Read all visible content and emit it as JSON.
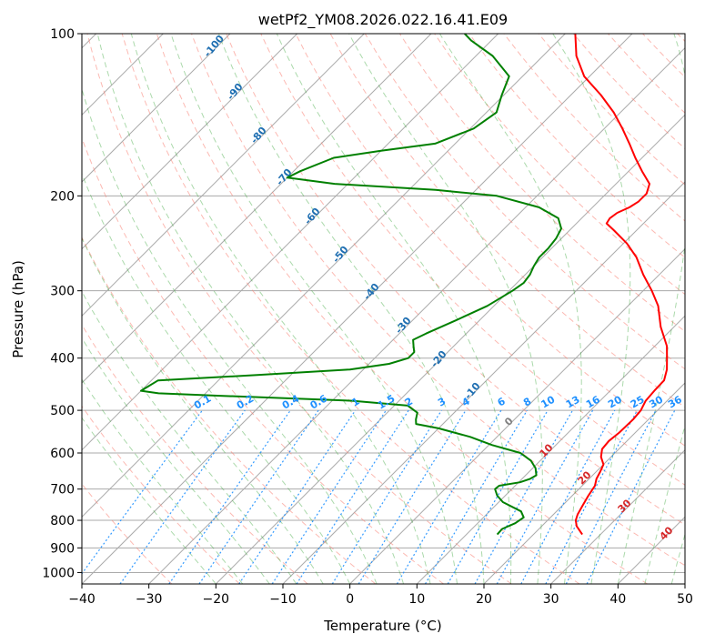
{
  "chart_data": {
    "type": "line",
    "title": "wetPf2_YM08.2026.022.16.41.E09",
    "xlabel": "Temperature (°C)",
    "ylabel": "Pressure (hPa)",
    "xlim": [
      -40,
      50
    ],
    "ylim": [
      1050,
      100
    ],
    "y_scale": "log",
    "skew": true,
    "x_ticks": [
      -40,
      -30,
      -20,
      -10,
      0,
      10,
      20,
      30,
      40,
      50
    ],
    "y_ticks": [
      100,
      200,
      300,
      400,
      500,
      600,
      700,
      800,
      900,
      1000
    ],
    "grid": true,
    "series": [
      {
        "color": "#ff0000",
        "points": [
          [
            850,
            27.3
          ],
          [
            820,
            25.2
          ],
          [
            800,
            24.2
          ],
          [
            780,
            23.6
          ],
          [
            750,
            23.0
          ],
          [
            720,
            22.4
          ],
          [
            690,
            21.9
          ],
          [
            670,
            21.1
          ],
          [
            650,
            20.6
          ],
          [
            630,
            20.0
          ],
          [
            610,
            18.5
          ],
          [
            590,
            17.5
          ],
          [
            570,
            17.3
          ],
          [
            550,
            17.6
          ],
          [
            520,
            17.7
          ],
          [
            500,
            17.5
          ],
          [
            480,
            16.8
          ],
          [
            460,
            16.6
          ],
          [
            440,
            16.5
          ],
          [
            420,
            15.3
          ],
          [
            400,
            13.6
          ],
          [
            380,
            11.8
          ],
          [
            350,
            8.0
          ],
          [
            320,
            4.5
          ],
          [
            300,
            1.3
          ],
          [
            280,
            -2.4
          ],
          [
            260,
            -6.0
          ],
          [
            245,
            -9.5
          ],
          [
            232,
            -13.3
          ],
          [
            225,
            -15.5
          ],
          [
            220,
            -15.8
          ],
          [
            215,
            -15.5
          ],
          [
            210,
            -14.5
          ],
          [
            205,
            -14.0
          ],
          [
            198,
            -14.0
          ],
          [
            190,
            -15.0
          ],
          [
            180,
            -18.0
          ],
          [
            170,
            -21.0
          ],
          [
            160,
            -24.0
          ],
          [
            150,
            -27.3
          ],
          [
            140,
            -31.0
          ],
          [
            130,
            -35.5
          ],
          [
            120,
            -40.8
          ],
          [
            110,
            -45.0
          ],
          [
            100,
            -48.5
          ]
        ]
      },
      {
        "color": "#008000",
        "points": [
          [
            850,
            14.6
          ],
          [
            830,
            14.5
          ],
          [
            810,
            15.6
          ],
          [
            790,
            16.0
          ],
          [
            770,
            14.7
          ],
          [
            740,
            10.6
          ],
          [
            720,
            8.8
          ],
          [
            700,
            7.5
          ],
          [
            690,
            7.6
          ],
          [
            680,
            10.2
          ],
          [
            670,
            11.2
          ],
          [
            660,
            11.6
          ],
          [
            640,
            10.4
          ],
          [
            620,
            8.6
          ],
          [
            600,
            5.9
          ],
          [
            580,
            0.5
          ],
          [
            560,
            -4.0
          ],
          [
            540,
            -10.0
          ],
          [
            530,
            -14.0
          ],
          [
            520,
            -14.7
          ],
          [
            505,
            -15.5
          ],
          [
            490,
            -18.0
          ],
          [
            480,
            -27.0
          ],
          [
            470,
            -47.0
          ],
          [
            465,
            -57.0
          ],
          [
            460,
            -60.0
          ],
          [
            440,
            -59.0
          ],
          [
            430,
            -45.0
          ],
          [
            420,
            -32.0
          ],
          [
            410,
            -27.0
          ],
          [
            400,
            -25.0
          ],
          [
            390,
            -25.0
          ],
          [
            380,
            -26.0
          ],
          [
            370,
            -27.0
          ],
          [
            360,
            -26.0
          ],
          [
            340,
            -23.5
          ],
          [
            320,
            -21.0
          ],
          [
            300,
            -19.5
          ],
          [
            290,
            -19.0
          ],
          [
            280,
            -19.3
          ],
          [
            270,
            -20.0
          ],
          [
            260,
            -20.5
          ],
          [
            250,
            -20.5
          ],
          [
            240,
            -20.8
          ],
          [
            230,
            -21.5
          ],
          [
            220,
            -23.5
          ],
          [
            210,
            -28.0
          ],
          [
            200,
            -36.0
          ],
          [
            195,
            -46.0
          ],
          [
            190,
            -62.0
          ],
          [
            185,
            -70.0
          ],
          [
            180,
            -69.0
          ],
          [
            170,
            -66.0
          ],
          [
            165,
            -60.0
          ],
          [
            160,
            -53.0
          ],
          [
            150,
            -49.5
          ],
          [
            140,
            -48.5
          ],
          [
            130,
            -50.3
          ],
          [
            120,
            -52.0
          ],
          [
            110,
            -57.5
          ],
          [
            103,
            -63.0
          ],
          [
            100,
            -65.0
          ]
        ]
      }
    ],
    "dry_adiabat_labels": [
      "-100",
      "-90",
      "-80",
      "-70",
      "-60",
      "-50",
      "-40",
      "-30",
      "-20",
      "-10"
    ],
    "moist_adiabat_labels": [
      "0",
      "10",
      "20",
      "30",
      "40"
    ],
    "mixing_ratio_labels": [
      "0.1",
      "0.2",
      "0.4",
      "0.6",
      "1",
      "1.5",
      "2",
      "3",
      "4",
      "6",
      "8",
      "10",
      "13",
      "16",
      "20",
      "25",
      "30",
      "36"
    ],
    "colors": {
      "temperature": "#ff0000",
      "dewpoint": "#008000",
      "isotherm": "#aaaaaa",
      "dry_adiabat": "#fa8072",
      "moist_adiabat": "#2ca02c",
      "mixing_ratio": "#1e90ff",
      "isobar": "#aaaaaa"
    }
  }
}
